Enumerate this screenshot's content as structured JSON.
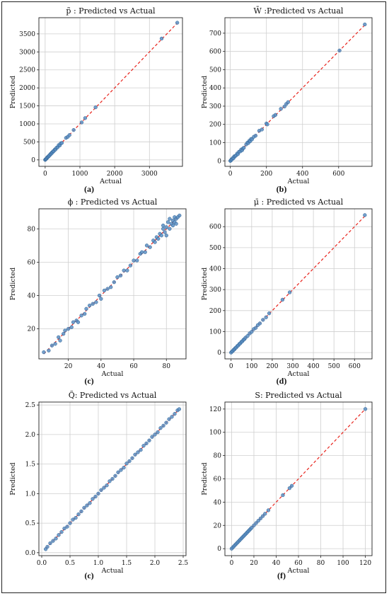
{
  "chart_data": [
    {
      "type": "scatter",
      "title": "p̃ : Predicted vs Actual",
      "xlabel": "Actual",
      "ylabel": "Predicted",
      "caption": "(a)",
      "xlim": [
        -180,
        3950
      ],
      "ylim": [
        -180,
        3950
      ],
      "xticks": [
        0,
        1000,
        2000,
        3000
      ],
      "yticks": [
        0,
        500,
        1000,
        1500,
        2000,
        2500,
        3000,
        3500
      ],
      "grid": true,
      "reference_line": "y = x (red dashed)",
      "points": [
        [
          0,
          0
        ],
        [
          10,
          12
        ],
        [
          20,
          22
        ],
        [
          35,
          30
        ],
        [
          50,
          48
        ],
        [
          60,
          70
        ],
        [
          80,
          82
        ],
        [
          95,
          90
        ],
        [
          110,
          115
        ],
        [
          130,
          125
        ],
        [
          150,
          160
        ],
        [
          170,
          165
        ],
        [
          190,
          200
        ],
        [
          210,
          205
        ],
        [
          230,
          240
        ],
        [
          250,
          245
        ],
        [
          280,
          290
        ],
        [
          300,
          290
        ],
        [
          330,
          340
        ],
        [
          360,
          350
        ],
        [
          390,
          410
        ],
        [
          420,
          400
        ],
        [
          450,
          460
        ],
        [
          480,
          470
        ],
        [
          600,
          610
        ],
        [
          650,
          640
        ],
        [
          700,
          690
        ],
        [
          820,
          830
        ],
        [
          1050,
          1040
        ],
        [
          1150,
          1160
        ],
        [
          1450,
          1460
        ],
        [
          3350,
          3370
        ],
        [
          3800,
          3810
        ]
      ]
    },
    {
      "type": "scatter",
      "title": "W̄ :Predicted vs Actual",
      "xlabel": "Actual",
      "ylabel": "Predicted",
      "caption": "(b)",
      "xlim": [
        -30,
        785
      ],
      "ylim": [
        -30,
        785
      ],
      "xticks": [
        0,
        200,
        400,
        600
      ],
      "yticks": [
        0,
        100,
        200,
        300,
        400,
        500,
        600,
        700
      ],
      "grid": true,
      "reference_line": "y = x (red dashed)",
      "points": [
        [
          0,
          0
        ],
        [
          3,
          2
        ],
        [
          6,
          8
        ],
        [
          10,
          9
        ],
        [
          14,
          16
        ],
        [
          18,
          15
        ],
        [
          22,
          25
        ],
        [
          27,
          26
        ],
        [
          32,
          30
        ],
        [
          38,
          40
        ],
        [
          42,
          37
        ],
        [
          48,
          50
        ],
        [
          55,
          52
        ],
        [
          60,
          62
        ],
        [
          65,
          58
        ],
        [
          70,
          68
        ],
        [
          75,
          72
        ],
        [
          88,
          90
        ],
        [
          95,
          100
        ],
        [
          100,
          98
        ],
        [
          105,
          110
        ],
        [
          110,
          108
        ],
        [
          115,
          120
        ],
        [
          120,
          118
        ],
        [
          130,
          132
        ],
        [
          140,
          138
        ],
        [
          160,
          165
        ],
        [
          175,
          172
        ],
        [
          200,
          205
        ],
        [
          205,
          200
        ],
        [
          240,
          245
        ],
        [
          250,
          252
        ],
        [
          280,
          285
        ],
        [
          300,
          298
        ],
        [
          310,
          312
        ],
        [
          320,
          322
        ],
        [
          605,
          605
        ],
        [
          745,
          748
        ]
      ]
    },
    {
      "type": "scatter",
      "title": "ϕ : Predicted vs Actual",
      "xlabel": "Actual",
      "ylabel": "Predicted",
      "caption": "(c)",
      "xlim": [
        2,
        92
      ],
      "ylim": [
        2,
        92
      ],
      "xticks": [
        20,
        40,
        60,
        80
      ],
      "yticks": [
        20,
        40,
        60,
        80
      ],
      "grid": true,
      "reference_line": "y = x (red dashed)",
      "points": [
        [
          5,
          6
        ],
        [
          8,
          7
        ],
        [
          10,
          10
        ],
        [
          12,
          11
        ],
        [
          14,
          15
        ],
        [
          15,
          13
        ],
        [
          17,
          17
        ],
        [
          18,
          19
        ],
        [
          20,
          20
        ],
        [
          22,
          21
        ],
        [
          23,
          24
        ],
        [
          25,
          25
        ],
        [
          26,
          24
        ],
        [
          28,
          28
        ],
        [
          30,
          29
        ],
        [
          31,
          32
        ],
        [
          33,
          34
        ],
        [
          35,
          35
        ],
        [
          37,
          36
        ],
        [
          39,
          40
        ],
        [
          40,
          38
        ],
        [
          42,
          43
        ],
        [
          44,
          44
        ],
        [
          46,
          45
        ],
        [
          48,
          48
        ],
        [
          50,
          51
        ],
        [
          52,
          52
        ],
        [
          54,
          55
        ],
        [
          56,
          55
        ],
        [
          58,
          58
        ],
        [
          60,
          61
        ],
        [
          62,
          61
        ],
        [
          64,
          65
        ],
        [
          65,
          66
        ],
        [
          67,
          66
        ],
        [
          68,
          70
        ],
        [
          70,
          69
        ],
        [
          72,
          73
        ],
        [
          73,
          72
        ],
        [
          74,
          75
        ],
        [
          75,
          74
        ],
        [
          76,
          77
        ],
        [
          77,
          76
        ],
        [
          78,
          80
        ],
        [
          78,
          82
        ],
        [
          79,
          78
        ],
        [
          80,
          81
        ],
        [
          80,
          76
        ],
        [
          81,
          84
        ],
        [
          82,
          80
        ],
        [
          82,
          86
        ],
        [
          83,
          83
        ],
        [
          84,
          82
        ],
        [
          84,
          85
        ],
        [
          85,
          84
        ],
        [
          85,
          87
        ],
        [
          86,
          83
        ],
        [
          86,
          86
        ],
        [
          87,
          87
        ],
        [
          88,
          88
        ]
      ]
    },
    {
      "type": "scatter",
      "title": "μ̄ : Predicted vs Actual",
      "xlabel": "Actual",
      "ylabel": "Predicted",
      "caption": "(d)",
      "xlim": [
        -30,
        685
      ],
      "ylim": [
        -30,
        685
      ],
      "xticks": [
        0,
        100,
        200,
        300,
        400,
        500,
        600
      ],
      "yticks": [
        0,
        100,
        200,
        300,
        400,
        500,
        600
      ],
      "grid": true,
      "reference_line": "y = x (red dashed)",
      "points": [
        [
          0,
          0
        ],
        [
          4,
          5
        ],
        [
          8,
          7
        ],
        [
          12,
          13
        ],
        [
          16,
          15
        ],
        [
          20,
          21
        ],
        [
          25,
          24
        ],
        [
          30,
          31
        ],
        [
          35,
          34
        ],
        [
          40,
          41
        ],
        [
          45,
          44
        ],
        [
          50,
          51
        ],
        [
          55,
          54
        ],
        [
          60,
          61
        ],
        [
          65,
          64
        ],
        [
          70,
          71
        ],
        [
          80,
          79
        ],
        [
          90,
          91
        ],
        [
          100,
          99
        ],
        [
          110,
          112
        ],
        [
          120,
          118
        ],
        [
          130,
          131
        ],
        [
          140,
          139
        ],
        [
          155,
          156
        ],
        [
          170,
          168
        ],
        [
          185,
          187
        ],
        [
          250,
          252
        ],
        [
          285,
          287
        ],
        [
          650,
          655
        ]
      ]
    },
    {
      "type": "scatter",
      "title": "Q̃: Predicted vs Actual",
      "xlabel": "Actual",
      "ylabel": "Predicted",
      "caption": "(c)",
      "xlim": [
        -0.05,
        2.55
      ],
      "ylim": [
        -0.05,
        2.55
      ],
      "xticks": [
        0.0,
        0.5,
        1.0,
        1.5,
        2.0,
        2.5
      ],
      "yticks": [
        0.0,
        0.5,
        1.0,
        1.5,
        2.0,
        2.5
      ],
      "grid": true,
      "reference_line": "y = x (red dashed)",
      "points": [
        [
          0.07,
          0.06
        ],
        [
          0.1,
          0.1
        ],
        [
          0.15,
          0.16
        ],
        [
          0.2,
          0.2
        ],
        [
          0.25,
          0.24
        ],
        [
          0.3,
          0.3
        ],
        [
          0.35,
          0.35
        ],
        [
          0.4,
          0.41
        ],
        [
          0.45,
          0.44
        ],
        [
          0.5,
          0.5
        ],
        [
          0.55,
          0.56
        ],
        [
          0.6,
          0.59
        ],
        [
          0.65,
          0.65
        ],
        [
          0.7,
          0.7
        ],
        [
          0.75,
          0.76
        ],
        [
          0.8,
          0.8
        ],
        [
          0.85,
          0.84
        ],
        [
          0.9,
          0.91
        ],
        [
          0.95,
          0.95
        ],
        [
          1.0,
          1.0
        ],
        [
          1.05,
          1.06
        ],
        [
          1.1,
          1.1
        ],
        [
          1.15,
          1.14
        ],
        [
          1.2,
          1.21
        ],
        [
          1.25,
          1.25
        ],
        [
          1.3,
          1.3
        ],
        [
          1.35,
          1.36
        ],
        [
          1.4,
          1.4
        ],
        [
          1.45,
          1.44
        ],
        [
          1.5,
          1.51
        ],
        [
          1.55,
          1.55
        ],
        [
          1.6,
          1.6
        ],
        [
          1.65,
          1.66
        ],
        [
          1.7,
          1.7
        ],
        [
          1.75,
          1.74
        ],
        [
          1.8,
          1.81
        ],
        [
          1.85,
          1.85
        ],
        [
          1.9,
          1.9
        ],
        [
          1.95,
          1.96
        ],
        [
          2.0,
          2.0
        ],
        [
          2.05,
          2.04
        ],
        [
          2.1,
          2.11
        ],
        [
          2.15,
          2.15
        ],
        [
          2.2,
          2.2
        ],
        [
          2.25,
          2.26
        ],
        [
          2.3,
          2.3
        ],
        [
          2.35,
          2.35
        ],
        [
          2.4,
          2.41
        ],
        [
          2.43,
          2.43
        ]
      ]
    },
    {
      "type": "scatter",
      "title": "S: Predicted vs Actual",
      "xlabel": "Actual",
      "ylabel": "Predicted",
      "caption": "(f)",
      "xlim": [
        -6,
        126
      ],
      "ylim": [
        -6,
        126
      ],
      "xticks": [
        0,
        20,
        40,
        60,
        80,
        100,
        120
      ],
      "yticks": [
        0,
        20,
        40,
        60,
        80,
        100,
        120
      ],
      "grid": true,
      "reference_line": "y = x (red dashed)",
      "points": [
        [
          0,
          0
        ],
        [
          1,
          1
        ],
        [
          2,
          2
        ],
        [
          3,
          3
        ],
        [
          4,
          4
        ],
        [
          5,
          5
        ],
        [
          6,
          6
        ],
        [
          7,
          7
        ],
        [
          8,
          8
        ],
        [
          9,
          9
        ],
        [
          10,
          10
        ],
        [
          11,
          11
        ],
        [
          12,
          12
        ],
        [
          13,
          13
        ],
        [
          14,
          14
        ],
        [
          15,
          15
        ],
        [
          16,
          16
        ],
        [
          17,
          17
        ],
        [
          18,
          18
        ],
        [
          20,
          20
        ],
        [
          22,
          22
        ],
        [
          24,
          24
        ],
        [
          26,
          26
        ],
        [
          28,
          28
        ],
        [
          30,
          30
        ],
        [
          33,
          33
        ],
        [
          46,
          46
        ],
        [
          52,
          52
        ],
        [
          54,
          54
        ],
        [
          120,
          120
        ]
      ]
    }
  ]
}
